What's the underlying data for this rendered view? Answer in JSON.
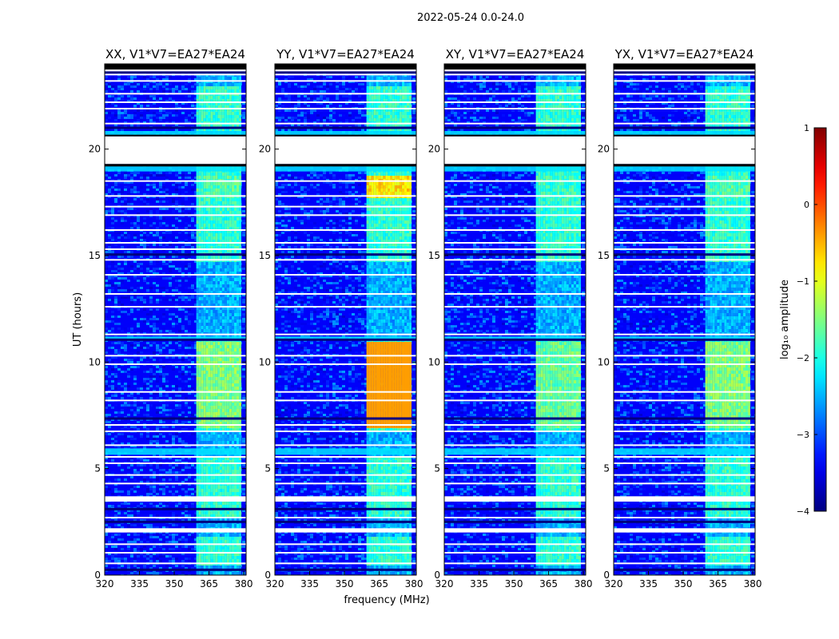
{
  "figure": {
    "suptitle": "2022-05-24 0.0-24.0"
  },
  "chart_data": {
    "type": "heatmap",
    "title": "2022-05-24 0.0-24.0",
    "xlabel": "frequency (MHz)",
    "ylabel": "UT (hours)",
    "xlim": [
      320,
      381
    ],
    "ylim": [
      0,
      24
    ],
    "x_ticks": [
      "320",
      "335",
      "350",
      "365",
      "380"
    ],
    "y_ticks": [
      "0",
      "5",
      "10",
      "15",
      "20"
    ],
    "x_tick_values": [
      320,
      335,
      350,
      365,
      380
    ],
    "y_tick_values": [
      0,
      5,
      10,
      15,
      20
    ],
    "panels": [
      {
        "title": "XX, V1*V7=EA27*EA24",
        "rfi_boost": 1.0
      },
      {
        "title": "YY, V1*V7=EA27*EA24",
        "rfi_boost": 1.45
      },
      {
        "title": "XY, V1*V7=EA27*EA24",
        "rfi_boost": 0.95
      },
      {
        "title": "YX, V1*V7=EA27*EA24",
        "rfi_boost": 1.0
      }
    ],
    "rfi_band_mhz": [
      [
        359.5,
        363.8
      ],
      [
        364.6,
        368.8
      ],
      [
        369.6,
        374.0
      ],
      [
        374.8,
        378.6
      ]
    ],
    "rfi_active_hours": [
      [
        0.5,
        1.8
      ],
      [
        2.8,
        5.6
      ],
      [
        6.8,
        11.2
      ],
      [
        14.8,
        19.3
      ],
      [
        21.0,
        23.0
      ]
    ],
    "gaps_ut_hours": [
      [
        19.3,
        20.6
      ],
      [
        3.45,
        3.7
      ],
      [
        2.0,
        2.2
      ],
      [
        23.65,
        24.0
      ]
    ],
    "colorbar": {
      "label": "log₁₀ amplitude",
      "ticks": [
        "1",
        "0",
        "−1",
        "−2",
        "−3",
        "−4"
      ],
      "tick_values": [
        1,
        0,
        -1,
        -2,
        -3,
        -4
      ],
      "range": [
        -4,
        1
      ],
      "colormap": "jet"
    }
  }
}
